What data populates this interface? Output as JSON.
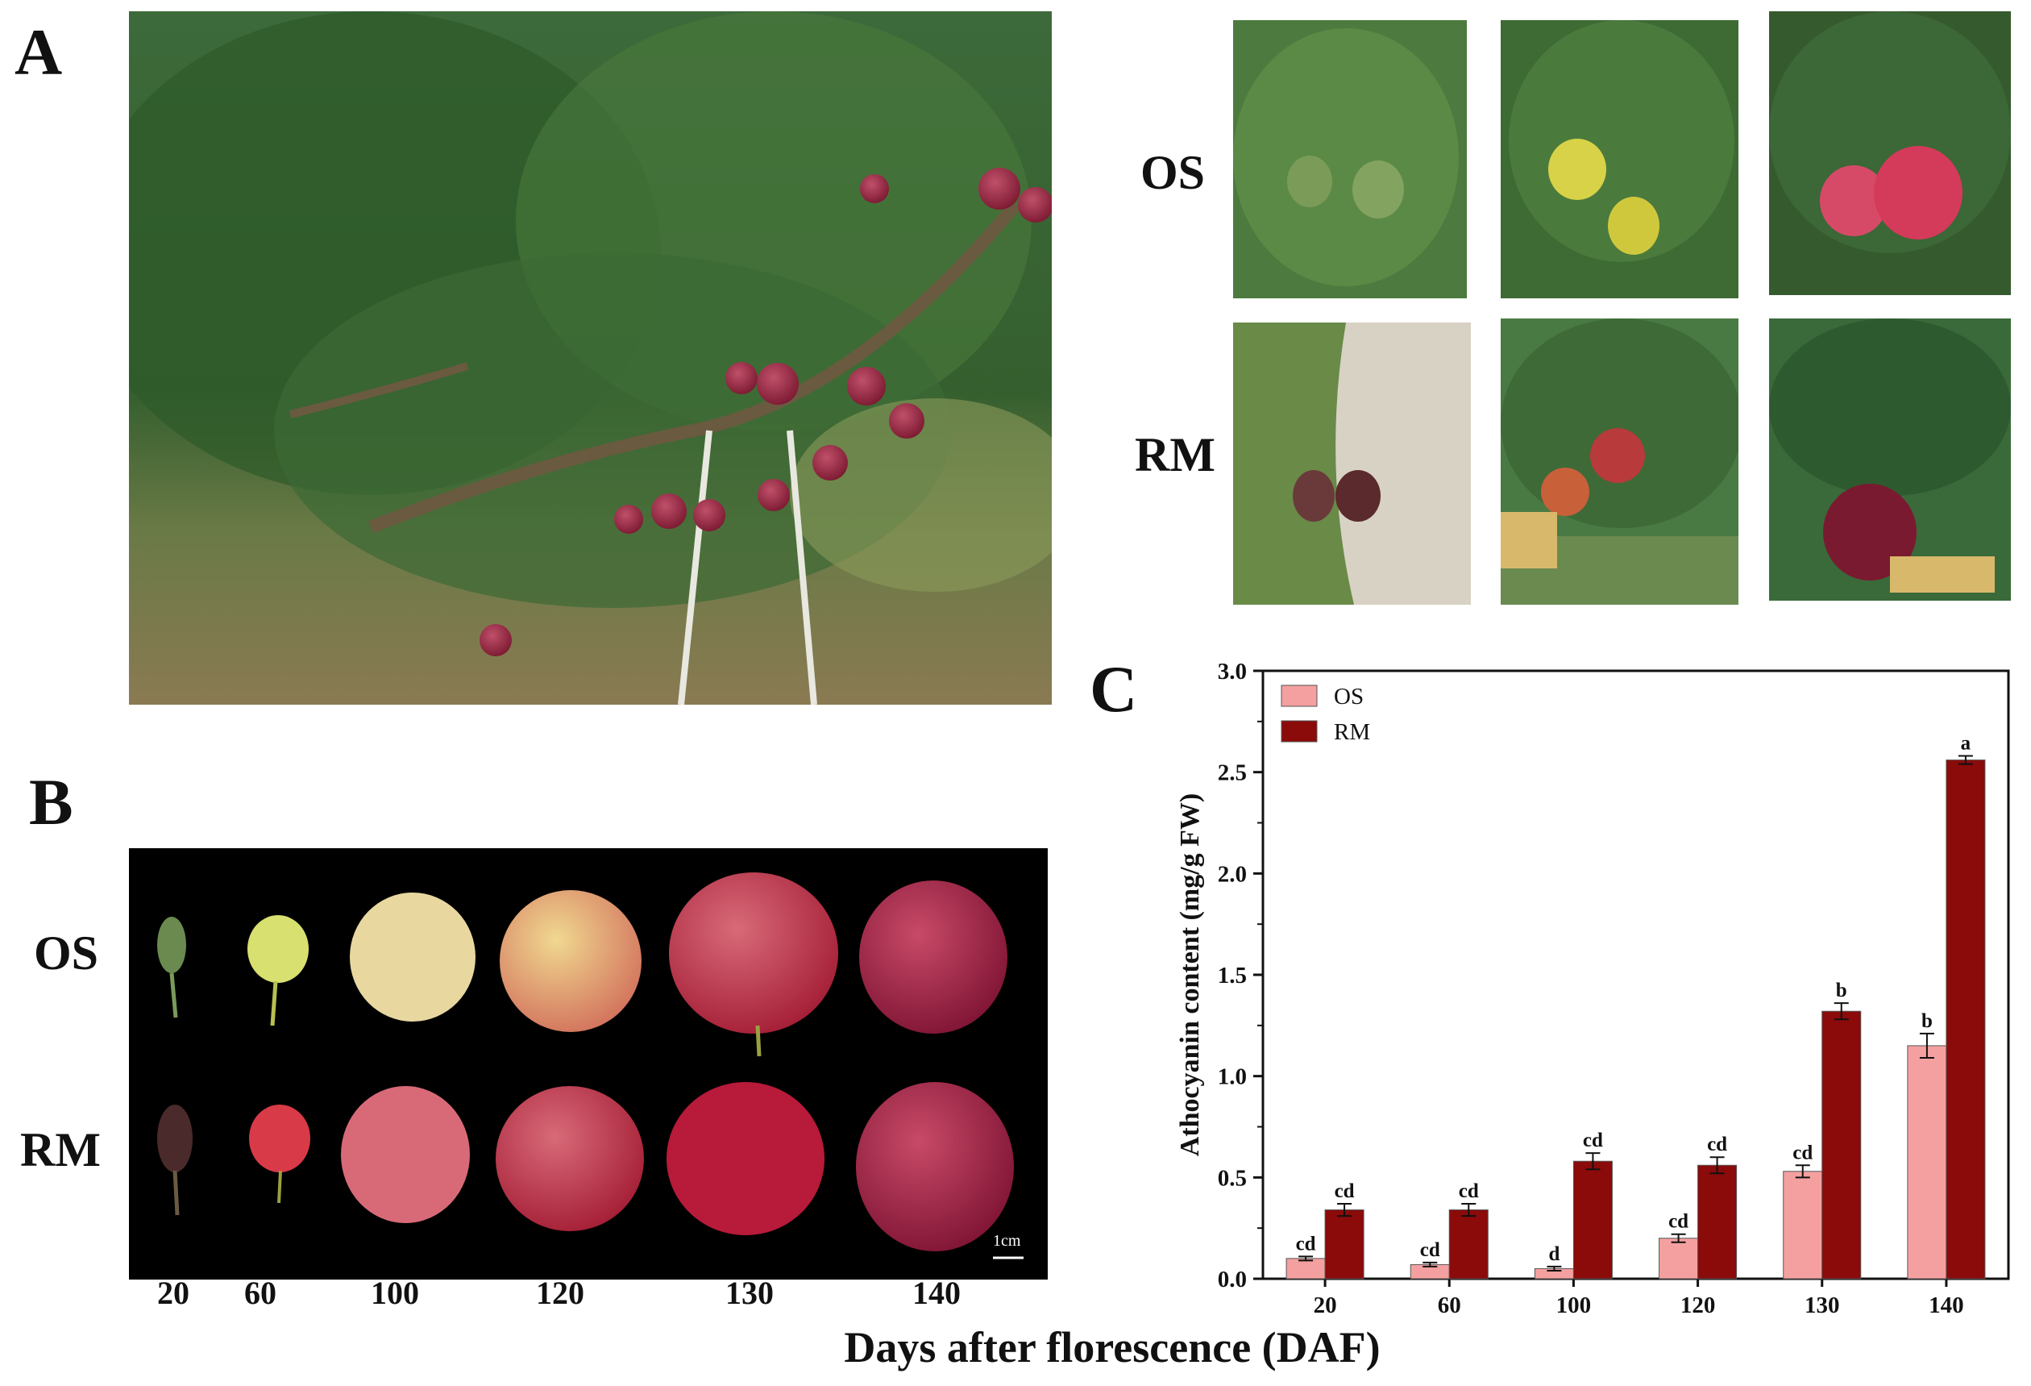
{
  "panels": {
    "a": "A",
    "b": "B",
    "c": "C"
  },
  "rows": {
    "os": "OS",
    "rm": "RM"
  },
  "panel_b": {
    "days": [
      "20",
      "60",
      "100",
      "120",
      "130",
      "140"
    ],
    "scale_bar_label": "1cm"
  },
  "x_axis_title": "Days after florescence (DAF)",
  "colors": {
    "os": "#f5a0a0",
    "rm": "#8b0a0a"
  },
  "icons": [
    "orchard-photo",
    "os-fruit-photo",
    "rm-fruit-photo",
    "fruit-series-photo"
  ],
  "chart_data": {
    "type": "bar",
    "title": "",
    "xlabel": "Days after florescence (DAF)",
    "ylabel": "Athocyanin content (mg/g FW)",
    "categories": [
      "20",
      "60",
      "100",
      "120",
      "130",
      "140"
    ],
    "ylim": [
      0,
      3.0
    ],
    "yticks": [
      "0.0",
      "0.5",
      "1.0",
      "1.5",
      "2.0",
      "2.5",
      "3.0"
    ],
    "legend_position": "top-left",
    "series": [
      {
        "name": "OS",
        "values": [
          0.1,
          0.07,
          0.05,
          0.2,
          0.53,
          1.15
        ],
        "errors": [
          0.01,
          0.01,
          0.01,
          0.02,
          0.03,
          0.06
        ],
        "labels": [
          "cd",
          "cd",
          "d",
          "cd",
          "cd",
          "b"
        ]
      },
      {
        "name": "RM",
        "values": [
          0.34,
          0.34,
          0.58,
          0.56,
          1.32,
          2.56
        ],
        "errors": [
          0.03,
          0.03,
          0.04,
          0.04,
          0.04,
          0.02
        ],
        "labels": [
          "cd",
          "cd",
          "cd",
          "cd",
          "b",
          "a"
        ]
      }
    ]
  }
}
